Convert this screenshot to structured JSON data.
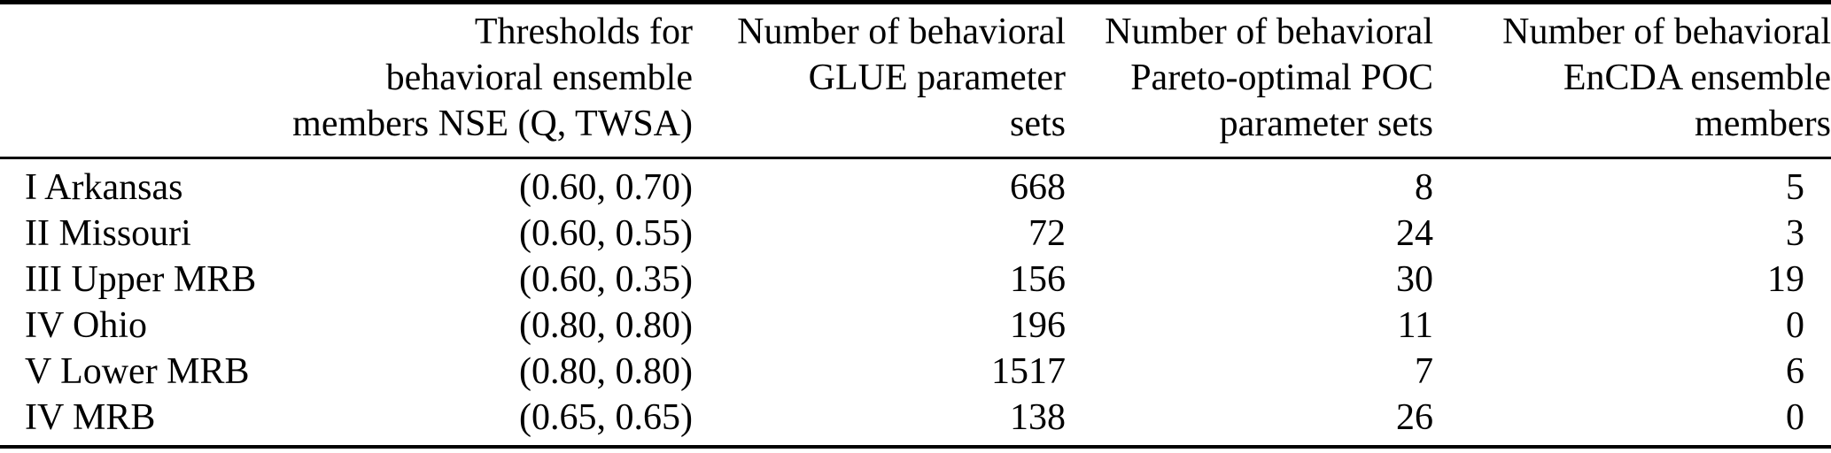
{
  "colors": {
    "text": "#000000",
    "background": "#ffffff",
    "rule": "#000000"
  },
  "table": {
    "header": {
      "region": "",
      "thresholds": {
        "line1": "Thresholds for",
        "line2": "behavioral ensemble",
        "line3": "members NSE (Q, TWSA)"
      },
      "glue": {
        "line1": "Number of behavioral",
        "line2": "GLUE parameter",
        "line3": "sets"
      },
      "poc": {
        "line1": "Number of behavioral",
        "line2": "Pareto-optimal POC",
        "line3": "parameter sets"
      },
      "encda": {
        "line1": "Number of behavioral",
        "line2": "EnCDA ensemble",
        "line3": "members"
      }
    },
    "rows": [
      {
        "region": "I Arkansas",
        "thresholds": "(0.60, 0.70)",
        "glue": "668",
        "poc": "8",
        "encda": "5"
      },
      {
        "region": "II Missouri",
        "thresholds": "(0.60, 0.55)",
        "glue": "72",
        "poc": "24",
        "encda": "3"
      },
      {
        "region": "III Upper MRB",
        "thresholds": "(0.60, 0.35)",
        "glue": "156",
        "poc": "30",
        "encda": "19"
      },
      {
        "region": "IV Ohio",
        "thresholds": "(0.80, 0.80)",
        "glue": "196",
        "poc": "11",
        "encda": "0"
      },
      {
        "region": "V Lower MRB",
        "thresholds": "(0.80, 0.80)",
        "glue": "1517",
        "poc": "7",
        "encda": "6"
      },
      {
        "region": "IV MRB",
        "thresholds": "(0.65, 0.65)",
        "glue": "138",
        "poc": "26",
        "encda": "0"
      }
    ]
  }
}
